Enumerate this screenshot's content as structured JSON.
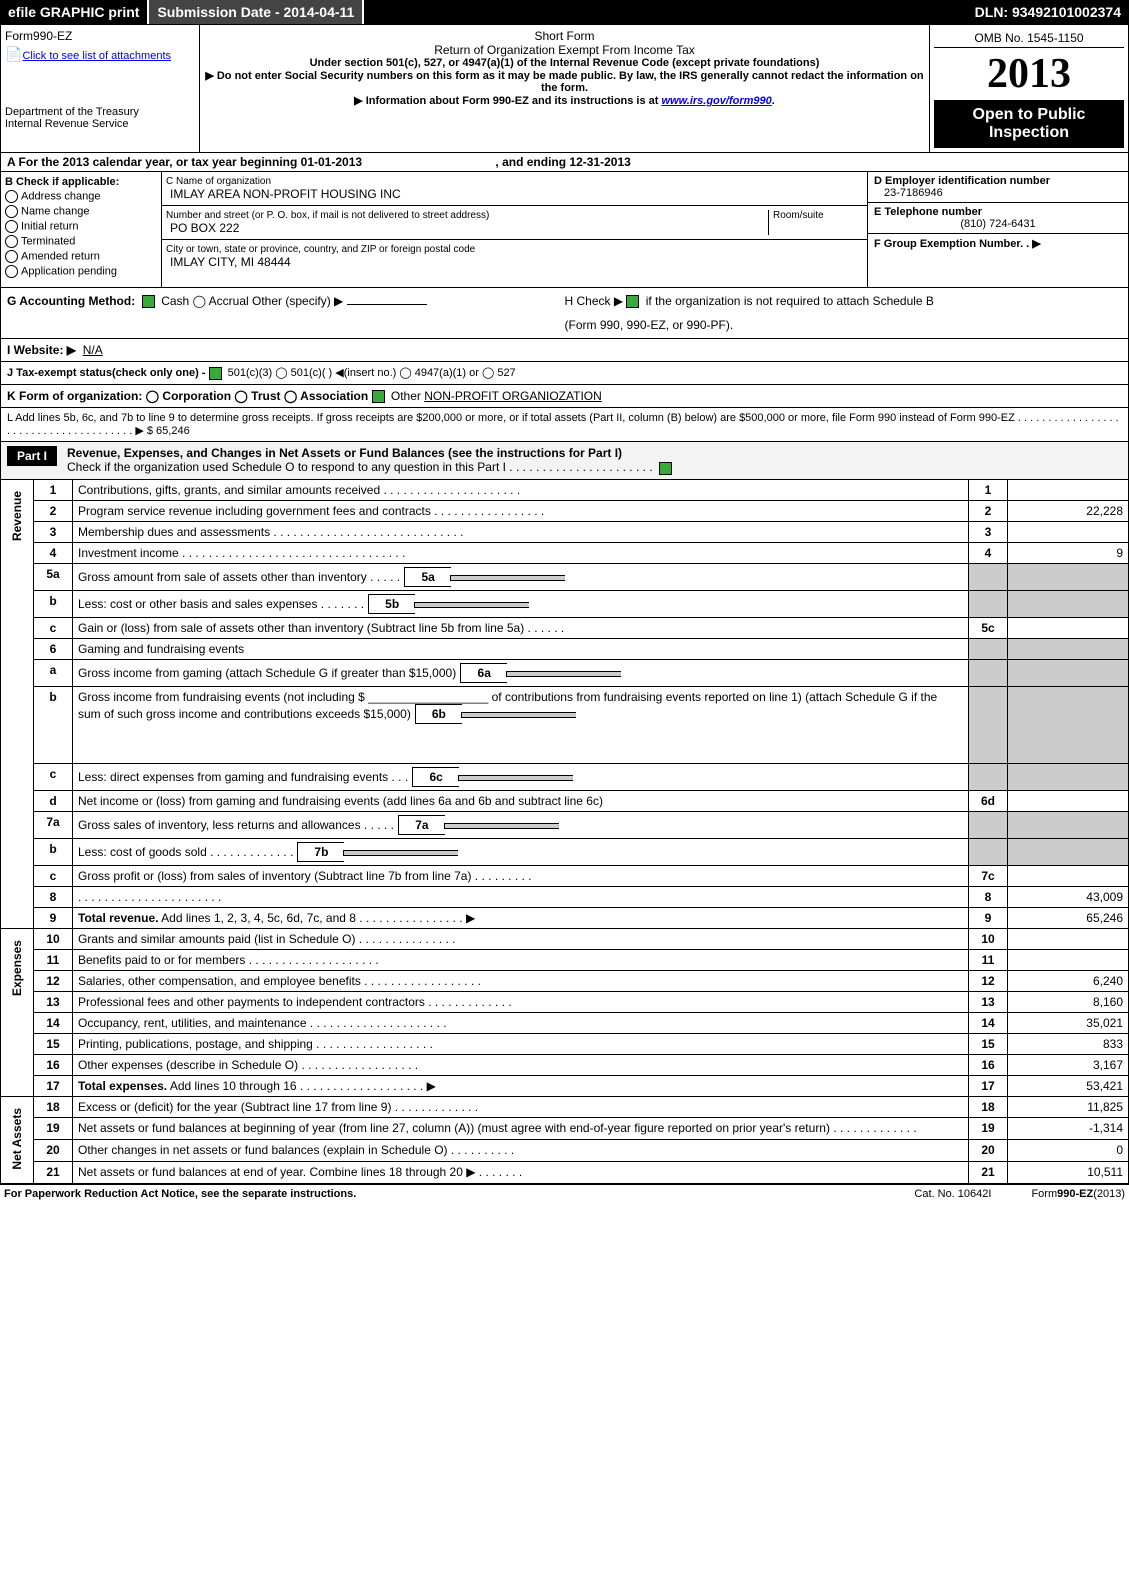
{
  "header": {
    "efile": "efile GRAPHIC print",
    "submission_label": "Submission Date - 2014-04-11",
    "dln": "DLN: 93492101002374",
    "omb": "OMB No. 1545-1150",
    "year": "2013",
    "open_public": "Open to Public Inspection"
  },
  "form": {
    "name": "Form990-EZ",
    "attach_link": "Click to see list of attachments",
    "dept": "Department of the Treasury",
    "irs": "Internal Revenue Service",
    "short": "Short Form",
    "title": "Return of Organization Exempt From Income Tax",
    "subtitle": "Under section 501(c), 527, or 4947(a)(1) of the Internal Revenue Code (except private foundations)",
    "warn1": "▶ Do not enter Social Security numbers on this form as it may be made public. By law, the IRS generally cannot redact the information on the form.",
    "warn2": "▶ Information about Form 990-EZ and its instructions is at ",
    "warn2_link": "www.irs.gov/form990"
  },
  "secA": {
    "text": "A  For the 2013 calendar year, or tax year beginning 01-01-2013",
    "ending": ", and ending 12-31-2013"
  },
  "secB": {
    "hdr": "B  Check if applicable:",
    "items": [
      "Address change",
      "Name change",
      "Initial return",
      "Terminated",
      "Amended return",
      "Application pending"
    ]
  },
  "secC": {
    "name_lbl": "C Name of organization",
    "name_val": "IMLAY AREA NON-PROFIT HOUSING INC",
    "street_lbl": "Number and street (or P. O. box, if mail is not delivered to street address)",
    "room_lbl": "Room/suite",
    "street_val": "PO BOX 222",
    "city_lbl": "City or town, state or province, country, and ZIP or foreign postal code",
    "city_val": "IMLAY CITY, MI  48444"
  },
  "secD": {
    "lbl": "D Employer identification number",
    "val": "23-7186946"
  },
  "secE": {
    "lbl": "E Telephone number",
    "val": "(810) 724-6431"
  },
  "secF": {
    "lbl": "F Group Exemption Number.   . ▶"
  },
  "secG": {
    "lbl": "G Accounting Method:",
    "opts": "Cash   ◯ Accrual   Other (specify) ▶"
  },
  "secH": {
    "txt": "H   Check ▶  ",
    "rest": " if the organization is not required to attach Schedule B",
    "sub": "(Form 990, 990-EZ, or 990-PF)."
  },
  "secI": {
    "lbl": "I Website: ▶",
    "val": "N/A"
  },
  "secJ": {
    "txt": "J Tax-exempt status(check only one) - ",
    "opts": " 501(c)(3)  ◯ 501(c)(  ) ◀(insert no.)  ◯ 4947(a)(1) or  ◯ 527"
  },
  "secK": {
    "txt": "K Form of organization:   ◯ Corporation   ◯ Trust   ◯ Association   ",
    "oth": "Other ",
    "val": "NON-PROFIT ORGANIOZATION"
  },
  "secL": {
    "txt": "L Add lines 5b, 6c, and 7b to line 9 to determine gross receipts. If gross receipts are $200,000 or more, or if total assets (Part II, column (B) below) are $500,000 or more, file Form 990 instead of Form 990-EZ  .  .  .  .  .  .  .  .  .  .  .  .  .  .  .  .  .  .  .  .  .  .  .  .  .  .  .  .  .  .  .  .  .  .  .  .  .  . ▶ $ 65,246"
  },
  "part1": {
    "label": "Part I",
    "title": "Revenue, Expenses, and Changes in Net Assets or Fund Balances (see the instructions for Part I)",
    "check": "Check if the organization used Schedule O to respond to any question in this Part I .  .  .  .  .  .  .  .  .  .  .  .  .  .  .  .  .  .  .  .  .  .",
    "rows": [
      {
        "n": "1",
        "d": "Contributions, gifts, grants, and similar amounts received  .  .  .  .  .  .  .  .  .  .  .  .  .  .  .  .  .  .  .  .  .",
        "rn": "1",
        "v": ""
      },
      {
        "n": "2",
        "d": "Program service revenue including government fees and contracts  .  .  .  .  .  .  .  .  .  .  .  .  .  .  .  .  .",
        "rn": "2",
        "v": "22,228"
      },
      {
        "n": "3",
        "d": "Membership dues and assessments  .  .  .  .  .  .  .  .  .  .  .  .  .  .  .  .  .  .  .  .  .  .  .  .  .  .  .  .  .",
        "rn": "3",
        "v": ""
      },
      {
        "n": "4",
        "d": "Investment income  .  .  .  .  .  .  .  .  .  .  .  .  .  .  .  .  .  .  .  .  .  .  .  .  .  .  .  .  .  .  .  .  .  .",
        "rn": "4",
        "v": "9"
      },
      {
        "n": "5a",
        "sub": "5a",
        "d": "Gross amount from sale of assets other than inventory  .  .  .  .  .",
        "inline": true
      },
      {
        "n": "b",
        "sub": "5b",
        "d": "Less: cost or other basis and sales expenses  .  .  .  .  .  .  .",
        "inline": true
      },
      {
        "n": "c",
        "d": "Gain or (loss) from sale of assets other than inventory (Subtract line 5b from line 5a)   .   .   .   .   .   .",
        "rn": "5c",
        "v": ""
      },
      {
        "n": "6",
        "d": "Gaming and fundraising events",
        "rn": "",
        "shade": true
      },
      {
        "n": "a",
        "sub": "6a",
        "d": "Gross income from gaming (attach Schedule G if greater than $15,000)",
        "inline": true,
        "shade": true
      },
      {
        "n": "b",
        "sub": "6b",
        "d": "Gross income from fundraising events (not including $ __________________ of contributions from fundraising events reported on line 1) (attach Schedule G if the sum of such gross income and contributions exceeds $15,000)",
        "inline": true,
        "shade": true,
        "tall": true
      },
      {
        "n": "c",
        "sub": "6c",
        "d": "Less: direct expenses from gaming and fundraising events     .   .   .",
        "inline": true,
        "shade": true
      },
      {
        "n": "d",
        "d": "Net income or (loss) from gaming and fundraising events (add lines 6a and 6b and subtract line 6c)",
        "rn": "6d",
        "v": ""
      },
      {
        "n": "7a",
        "sub": "7a",
        "d": "Gross sales of inventory, less returns and allowances  .   .   .   .   .",
        "inline": true,
        "shade": true
      },
      {
        "n": "b",
        "sub": "7b",
        "d": "Less: cost of goods sold        .   .   .   .   .   .   .   .   .   .   .   .   .",
        "inline": true,
        "shade": true
      },
      {
        "n": "c",
        "d": "Gross profit or (loss) from sales of inventory (Subtract line 7b from line 7a)   .   .   .   .   .   .   .   .   .",
        "rn": "7c",
        "v": ""
      },
      {
        "n": "8",
        "d": "                          .   .   .   .   .   .   .   .   .   .   .   .   .   .   .   .   .   .   .   .   .   .",
        "rn": "8",
        "v": "43,009"
      },
      {
        "n": "9",
        "d": "Total revenue. Add lines 1, 2, 3, 4, 5c, 6d, 7c, and 8    .   .   .   .   .   .   .   .   .   .   .   .   .   .   .   .  ▶",
        "rn": "9",
        "v": "65,246",
        "bold": true
      },
      {
        "n": "10",
        "d": "Grants and similar amounts paid (list in Schedule O)                 .   .   .   .   .   .   .   .   .   .   .   .   .   .   .",
        "rn": "10",
        "v": ""
      },
      {
        "n": "11",
        "d": "Benefits paid to or for members                  .   .   .   .   .   .   .   .   .   .   .   .   .   .   .   .   .   .   .   .",
        "rn": "11",
        "v": ""
      },
      {
        "n": "12",
        "d": "Salaries, other compensation, and employee benefits .   .   .   .   .   .   .   .   .   .   .   .   .   .   .   .   .   .",
        "rn": "12",
        "v": "6,240"
      },
      {
        "n": "13",
        "d": "Professional fees and other payments to independent contractors  .   .   .   .   .   .   .   .   .   .   .   .   .",
        "rn": "13",
        "v": "8,160"
      },
      {
        "n": "14",
        "d": "Occupancy, rent, utilities, and maintenance .   .   .   .   .   .   .   .   .   .   .   .   .   .   .   .   .   .   .   .   .",
        "rn": "14",
        "v": "35,021"
      },
      {
        "n": "15",
        "d": "Printing, publications, postage, and shipping          .   .   .   .   .   .   .   .   .   .   .   .   .   .   .   .   .   .",
        "rn": "15",
        "v": "833"
      },
      {
        "n": "16",
        "d": "Other expenses (describe in Schedule O)              .   .   .   .   .   .   .   .   .   .   .   .   .   .   .   .   .   .",
        "rn": "16",
        "v": "3,167"
      },
      {
        "n": "17",
        "d": "Total expenses. Add lines 10 through 16            .   .   .   .   .   .   .   .   .   .   .   .   .   .   .   .   .   .   . ▶",
        "rn": "17",
        "v": "53,421",
        "bold": true
      },
      {
        "n": "18",
        "d": "Excess or (deficit) for the year (Subtract line 17 from line 9)          .   .   .   .   .   .   .   .   .   .   .   .   .",
        "rn": "18",
        "v": "11,825"
      },
      {
        "n": "19",
        "d": "Net assets or fund balances at beginning of year (from line 27, column (A)) (must agree with end-of-year figure reported on prior year's return)                .   .   .   .   .   .   .   .   .   .   .   .   .",
        "rn": "19",
        "v": "-1,314"
      },
      {
        "n": "20",
        "d": "Other changes in net assets or fund balances (explain in Schedule O)     .   .   .   .   .   .   .   .   .   .",
        "rn": "20",
        "v": "0"
      },
      {
        "n": "21",
        "d": "Net assets or fund balances at end of year. Combine lines 18 through 20 ▶         .   .   .   .   .   .   .",
        "rn": "21",
        "v": "10,511"
      }
    ],
    "vlabels": {
      "rev": "Revenue",
      "exp": "Expenses",
      "na": "Net Assets"
    }
  },
  "foot": {
    "l": "For Paperwork Reduction Act Notice, see the separate instructions.",
    "c": "Cat. No. 10642I",
    "r": "Form990-EZ(2013)"
  }
}
